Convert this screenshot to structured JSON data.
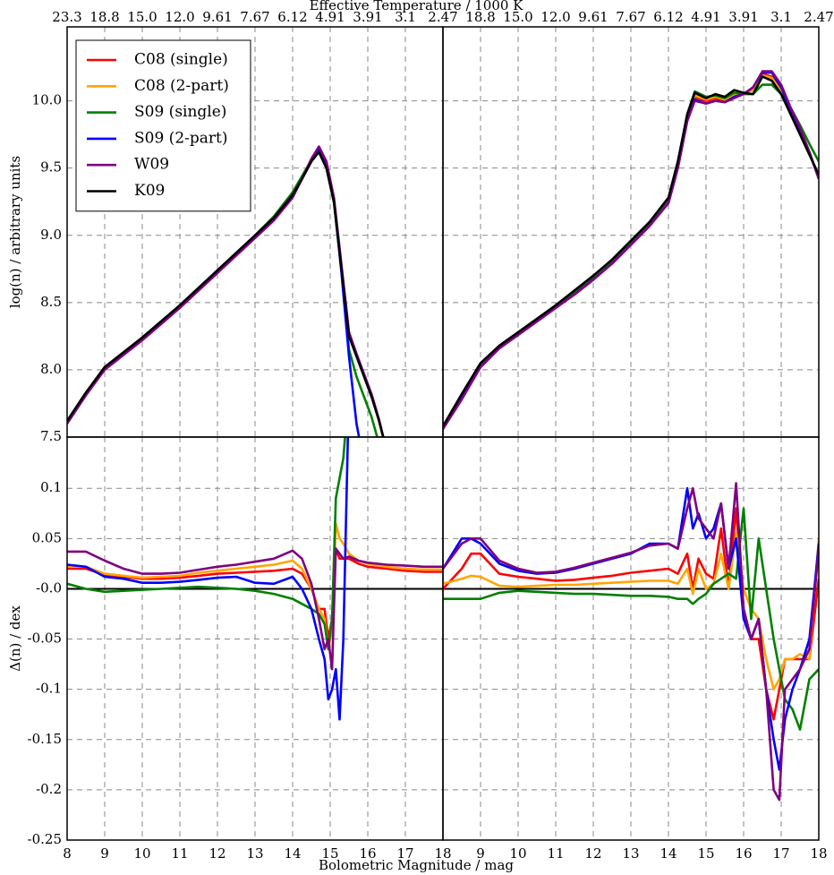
{
  "figure": {
    "top_label": "Effective Temperature / 1000 K",
    "x_label": "Bolometric Magnitude / mag"
  },
  "chart_data": [
    {
      "type": "line",
      "ylabel": "log(n) / arbitrary units",
      "legend": "upper left",
      "xlim": [
        8,
        18
      ],
      "ylim": [
        7.5,
        10.55
      ],
      "yticks": [
        7.5,
        {
          "value": 8,
          "label": "8.0"
        },
        8.5,
        {
          "value": 9,
          "label": "9.0"
        },
        9.5,
        {
          "value": 10,
          "label": "10.0"
        }
      ],
      "x2ticks": [
        {
          "value": 8,
          "label": "23.3"
        },
        {
          "value": 9,
          "label": "18.8"
        },
        {
          "value": 10,
          "label": "15.0"
        },
        {
          "value": 11,
          "label": "12.0"
        },
        {
          "value": 12,
          "label": "9.61"
        },
        {
          "value": 13,
          "label": "7.67"
        },
        {
          "value": 14,
          "label": "6.12"
        },
        {
          "value": 15,
          "label": "4.91"
        },
        {
          "value": 16,
          "label": "3.91"
        },
        {
          "value": 17,
          "label": "3.1"
        },
        {
          "value": 18,
          "label": "2.47"
        }
      ],
      "x": [
        8,
        8.5,
        9,
        9.5,
        10,
        10.5,
        11,
        11.5,
        12,
        12.5,
        13,
        13.5,
        14,
        14.25,
        14.5,
        14.7,
        14.9,
        15.1,
        15.3,
        15.5,
        15.7,
        15.9,
        16.1,
        16.3,
        16.5
      ],
      "series": [
        {
          "name": "C08 (single)",
          "color": "#ff0000",
          "values": [
            7.61,
            7.82,
            8.01,
            8.12,
            8.23,
            8.35,
            8.47,
            8.6,
            8.73,
            8.86,
            8.99,
            9.12,
            9.29,
            9.42,
            9.55,
            9.63,
            9.51,
            9.26,
            8.76,
            8.26,
            8.11,
            7.96,
            7.81,
            7.62,
            7.4
          ]
        },
        {
          "name": "C08 (2-part)",
          "color": "#ffa500",
          "values": [
            7.61,
            7.82,
            8.01,
            8.12,
            8.23,
            8.35,
            8.47,
            8.6,
            8.73,
            8.86,
            8.99,
            9.12,
            9.29,
            9.42,
            9.56,
            9.64,
            9.52,
            9.27,
            8.77,
            8.27,
            8.11,
            7.96,
            7.81,
            7.62,
            7.4
          ]
        },
        {
          "name": "S09 (single)",
          "color": "#008000",
          "values": [
            7.62,
            7.83,
            8.02,
            8.13,
            8.24,
            8.36,
            8.48,
            8.61,
            8.74,
            8.87,
            9.0,
            9.14,
            9.32,
            9.44,
            9.56,
            9.62,
            9.5,
            9.24,
            8.74,
            8.15,
            7.95,
            7.8,
            7.65,
            7.45,
            null
          ]
        },
        {
          "name": "S09 (2-part)",
          "color": "#0000ff",
          "values": [
            7.61,
            7.82,
            8.01,
            8.12,
            8.23,
            8.35,
            8.47,
            8.6,
            8.73,
            8.86,
            8.99,
            9.12,
            9.29,
            9.42,
            9.56,
            9.64,
            9.52,
            9.26,
            8.72,
            8.1,
            7.6,
            7.3,
            null,
            null,
            null
          ]
        },
        {
          "name": "W09",
          "color": "#800080",
          "values": [
            7.6,
            7.81,
            8.0,
            8.11,
            8.22,
            8.34,
            8.46,
            8.59,
            8.72,
            8.85,
            8.98,
            9.11,
            9.28,
            9.42,
            9.57,
            9.66,
            9.55,
            9.28,
            8.78,
            8.28,
            8.12,
            7.97,
            7.82,
            7.63,
            7.4
          ]
        },
        {
          "name": "K09",
          "color": "#000000",
          "values": [
            7.62,
            7.83,
            8.02,
            8.13,
            8.24,
            8.36,
            8.48,
            8.61,
            8.74,
            8.87,
            9.0,
            9.13,
            9.3,
            9.42,
            9.55,
            9.62,
            9.5,
            9.25,
            8.75,
            8.25,
            8.1,
            7.95,
            7.8,
            7.62,
            7.4
          ]
        }
      ]
    },
    {
      "type": "line",
      "ytick_labels": false,
      "xlim": [
        8,
        18
      ],
      "ylim": [
        7.5,
        10.55
      ],
      "yticks": [
        7.5,
        8,
        8.5,
        9,
        9.5,
        10
      ],
      "x2ticks": [
        {
          "value": 9,
          "label": "18.8"
        },
        {
          "value": 10,
          "label": "15.0"
        },
        {
          "value": 11,
          "label": "12.0"
        },
        {
          "value": 12,
          "label": "9.61"
        },
        {
          "value": 13,
          "label": "7.67"
        },
        {
          "value": 14,
          "label": "6.12"
        },
        {
          "value": 15,
          "label": "4.91"
        },
        {
          "value": 16,
          "label": "3.91"
        },
        {
          "value": 17,
          "label": "3.1"
        },
        {
          "value": 18,
          "label": "2.47"
        }
      ],
      "x": [
        8,
        8.5,
        9,
        9.5,
        10,
        10.5,
        11,
        11.5,
        12,
        12.5,
        13,
        13.5,
        14,
        14.25,
        14.5,
        14.7,
        15,
        15.25,
        15.5,
        15.75,
        16,
        16.25,
        16.5,
        16.75,
        17,
        17.25,
        17.5,
        17.75,
        18
      ],
      "series": [
        {
          "name": "C08 (single)",
          "color": "#ff0000",
          "values": [
            7.57,
            7.8,
            8.04,
            8.17,
            8.27,
            8.37,
            8.47,
            8.57,
            8.68,
            8.8,
            8.94,
            9.08,
            9.26,
            9.52,
            9.88,
            10.03,
            10.0,
            10.02,
            10.0,
            10.04,
            10.06,
            10.08,
            10.2,
            10.18,
            10.08,
            9.92,
            9.77,
            9.61,
            9.43
          ]
        },
        {
          "name": "C08 (2-part)",
          "color": "#ffa500",
          "values": [
            7.57,
            7.81,
            8.04,
            8.17,
            8.27,
            8.37,
            8.47,
            8.58,
            8.69,
            8.81,
            8.95,
            9.09,
            9.27,
            9.53,
            9.89,
            10.04,
            10.01,
            10.03,
            10.01,
            10.05,
            10.06,
            10.08,
            10.19,
            10.17,
            10.07,
            9.92,
            9.77,
            9.61,
            9.44
          ]
        },
        {
          "name": "S09 (single)",
          "color": "#008000",
          "values": [
            7.57,
            7.8,
            8.03,
            8.17,
            8.27,
            8.37,
            8.47,
            8.58,
            8.69,
            8.81,
            8.95,
            9.09,
            9.27,
            9.53,
            9.9,
            10.07,
            10.03,
            10.04,
            10.02,
            10.06,
            10.05,
            10.05,
            10.12,
            10.12,
            10.05,
            9.95,
            9.82,
            9.68,
            9.55
          ]
        },
        {
          "name": "S09 (2-part)",
          "color": "#0000ff",
          "values": [
            7.56,
            7.79,
            8.02,
            8.16,
            8.26,
            8.36,
            8.46,
            8.56,
            8.67,
            8.79,
            8.93,
            9.07,
            9.24,
            9.5,
            9.85,
            10.01,
            9.98,
            10.0,
            9.99,
            10.03,
            10.05,
            10.1,
            10.21,
            10.21,
            10.1,
            9.94,
            9.79,
            9.62,
            9.42
          ]
        },
        {
          "name": "W09",
          "color": "#800080",
          "values": [
            7.56,
            7.78,
            8.02,
            8.16,
            8.26,
            8.36,
            8.46,
            8.56,
            8.67,
            8.79,
            8.93,
            9.07,
            9.24,
            9.5,
            9.85,
            10.0,
            9.98,
            10.0,
            9.99,
            10.02,
            10.05,
            10.1,
            10.22,
            10.22,
            10.12,
            9.95,
            9.8,
            9.62,
            9.42
          ]
        },
        {
          "name": "K09",
          "color": "#000000",
          "values": [
            7.58,
            7.82,
            8.05,
            8.18,
            8.28,
            8.38,
            8.48,
            8.59,
            8.7,
            8.82,
            8.96,
            9.1,
            9.28,
            9.55,
            9.9,
            10.06,
            10.02,
            10.05,
            10.03,
            10.08,
            10.06,
            10.05,
            10.18,
            10.15,
            10.05,
            9.9,
            9.75,
            9.6,
            9.45
          ]
        }
      ]
    },
    {
      "type": "line",
      "ylabel": "Δ(n) / dex",
      "hline": 0,
      "xlim": [
        8,
        18
      ],
      "ylim": [
        -0.25,
        0.151
      ],
      "yticks": [
        0.1,
        0.05,
        {
          "value": 0,
          "label": "-0.0"
        },
        -0.05,
        -0.1,
        -0.15,
        -0.2,
        -0.25
      ],
      "xticks": [
        8,
        9,
        10,
        11,
        12,
        13,
        14,
        15,
        16,
        17,
        18
      ],
      "x": [
        8,
        8.5,
        9,
        9.5,
        10,
        10.5,
        11,
        11.5,
        12,
        12.5,
        13,
        13.5,
        14,
        14.25,
        14.5,
        14.7,
        14.85,
        14.95,
        15.05,
        15.15,
        15.25,
        15.35,
        15.5,
        15.75,
        16,
        16.5,
        17,
        17.5,
        18
      ],
      "series": [
        {
          "name": "C08 (single)",
          "color": "#ff0000",
          "values": [
            0.02,
            0.02,
            0.014,
            0.012,
            0.01,
            0.01,
            0.011,
            0.013,
            0.015,
            0.016,
            0.017,
            0.018,
            0.02,
            0.015,
            0.0,
            -0.02,
            -0.02,
            -0.05,
            -0.03,
            0.04,
            0.03,
            0.03,
            0.03,
            0.025,
            0.022,
            0.02,
            0.018,
            0.017,
            0.017
          ]
        },
        {
          "name": "C08 (2-part)",
          "color": "#ffa500",
          "values": [
            0.022,
            0.022,
            0.015,
            0.013,
            0.011,
            0.012,
            0.013,
            0.016,
            0.018,
            0.02,
            0.022,
            0.024,
            0.028,
            0.02,
            0.0,
            -0.02,
            -0.03,
            -0.06,
            -0.04,
            0.065,
            0.05,
            0.045,
            0.035,
            0.028,
            0.025,
            0.022,
            0.02,
            0.019,
            0.019
          ]
        },
        {
          "name": "S09 (single)",
          "color": "#008000",
          "values": [
            0.005,
            0.0,
            -0.003,
            -0.002,
            -0.001,
            0.0,
            0.001,
            0.002,
            0.001,
            0.0,
            -0.002,
            -0.005,
            -0.01,
            -0.015,
            -0.02,
            -0.025,
            -0.035,
            -0.06,
            -0.03,
            0.09,
            0.11,
            0.13,
            0.2,
            null,
            null,
            null,
            null,
            null,
            null
          ]
        },
        {
          "name": "S09 (2-part)",
          "color": "#0000ff",
          "values": [
            0.024,
            0.022,
            0.012,
            0.01,
            0.006,
            0.006,
            0.007,
            0.009,
            0.011,
            0.012,
            0.006,
            0.005,
            0.012,
            0.0,
            -0.02,
            -0.05,
            -0.07,
            -0.11,
            -0.1,
            -0.08,
            -0.13,
            -0.05,
            0.2,
            null,
            null,
            null,
            null,
            null,
            null
          ]
        },
        {
          "name": "W09",
          "color": "#800080",
          "values": [
            0.037,
            0.037,
            0.028,
            0.02,
            0.015,
            0.015,
            0.016,
            0.019,
            0.022,
            0.024,
            0.027,
            0.03,
            0.038,
            0.03,
            0.005,
            -0.03,
            -0.06,
            -0.05,
            -0.08,
            0.04,
            0.035,
            0.03,
            0.032,
            0.028,
            0.026,
            0.024,
            0.023,
            0.022,
            0.022
          ]
        }
      ]
    },
    {
      "type": "line",
      "ytick_labels": false,
      "hline": 0,
      "xlim": [
        8,
        18
      ],
      "ylim": [
        -0.25,
        0.151
      ],
      "yticks": [
        0.1,
        0.05,
        0,
        -0.05,
        -0.1,
        -0.15,
        -0.2,
        -0.25
      ],
      "xticks": [
        9,
        10,
        11,
        12,
        13,
        14,
        15,
        16,
        17,
        18
      ],
      "x": [
        8,
        8.5,
        8.75,
        9,
        9.5,
        10,
        10.5,
        11,
        11.5,
        12,
        12.5,
        13,
        13.5,
        14,
        14.25,
        14.5,
        14.65,
        14.8,
        15,
        15.2,
        15.4,
        15.6,
        15.8,
        16,
        16.2,
        16.4,
        16.6,
        16.8,
        16.95,
        17.1,
        17.3,
        17.5,
        17.75,
        18
      ],
      "series": [
        {
          "name": "C08 (single)",
          "color": "#ff0000",
          "values": [
            0.0,
            0.02,
            0.035,
            0.035,
            0.015,
            0.012,
            0.01,
            0.008,
            0.009,
            0.011,
            0.013,
            0.016,
            0.018,
            0.02,
            0.015,
            0.035,
            0.0,
            0.03,
            0.015,
            0.01,
            0.06,
            0.0,
            0.08,
            -0.02,
            -0.05,
            -0.05,
            -0.1,
            -0.13,
            -0.1,
            -0.07,
            -0.07,
            -0.07,
            -0.07,
            0.01
          ]
        },
        {
          "name": "C08 (2-part)",
          "color": "#ffa500",
          "values": [
            0.005,
            0.01,
            0.013,
            0.012,
            0.003,
            0.002,
            0.003,
            0.004,
            0.004,
            0.005,
            0.006,
            0.007,
            0.008,
            0.008,
            0.005,
            0.02,
            -0.005,
            0.02,
            0.0,
            0.005,
            0.035,
            0.0,
            0.055,
            0.0,
            -0.02,
            -0.03,
            -0.07,
            -0.1,
            -0.09,
            -0.07,
            -0.07,
            -0.065,
            -0.07,
            0.05
          ]
        },
        {
          "name": "S09 (single)",
          "color": "#008000",
          "values": [
            -0.01,
            -0.01,
            -0.01,
            -0.01,
            -0.004,
            -0.002,
            -0.003,
            -0.004,
            -0.005,
            -0.005,
            -0.006,
            -0.007,
            -0.007,
            -0.008,
            -0.01,
            -0.01,
            -0.015,
            -0.01,
            -0.005,
            0.005,
            0.01,
            0.015,
            0.01,
            0.08,
            -0.03,
            0.05,
            0.0,
            -0.05,
            -0.08,
            -0.11,
            -0.12,
            -0.14,
            -0.09,
            -0.08
          ]
        },
        {
          "name": "S09 (2-part)",
          "color": "#0000ff",
          "values": [
            0.02,
            0.05,
            0.05,
            0.045,
            0.025,
            0.018,
            0.015,
            0.016,
            0.02,
            0.025,
            0.03,
            0.035,
            0.045,
            0.045,
            0.04,
            0.1,
            0.06,
            0.075,
            0.05,
            0.06,
            0.085,
            0.02,
            0.05,
            -0.03,
            -0.05,
            -0.03,
            -0.1,
            -0.15,
            -0.18,
            -0.13,
            -0.1,
            -0.08,
            -0.05,
            0.045
          ]
        },
        {
          "name": "W09",
          "color": "#800080",
          "values": [
            0.02,
            0.045,
            0.05,
            0.05,
            0.028,
            0.02,
            0.016,
            0.017,
            0.021,
            0.026,
            0.031,
            0.036,
            0.043,
            0.045,
            0.04,
            0.08,
            0.1,
            0.07,
            0.06,
            0.05,
            0.085,
            0.02,
            0.105,
            -0.02,
            -0.05,
            -0.03,
            -0.1,
            -0.2,
            -0.21,
            -0.1,
            -0.09,
            -0.08,
            -0.06,
            0.04
          ]
        }
      ]
    }
  ]
}
